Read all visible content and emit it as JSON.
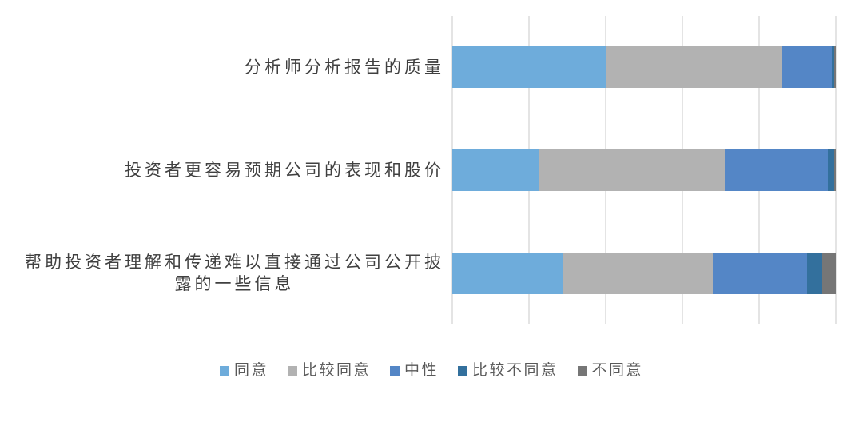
{
  "chart_data": {
    "type": "bar",
    "orientation": "horizontal",
    "stacked": true,
    "stack_unit": "percent",
    "title": "",
    "xlabel": "",
    "ylabel": "",
    "xlim": [
      0,
      100
    ],
    "gridlines_pct": [
      0,
      20,
      40,
      60,
      80,
      100
    ],
    "grid_on": true,
    "grid_color": "#e4e4e4",
    "legend_position": "bottom",
    "categories": [
      "分析师分析报告的质量",
      "投资者更容易预期公司的表现和股价",
      "帮助投资者理解和传递难以直接通过公司公开披\n露的一些信息"
    ],
    "series": [
      {
        "name": "同意",
        "color": "#6eacdb",
        "values": [
          40.0,
          22.5,
          29.0
        ]
      },
      {
        "name": "比较同意",
        "color": "#b2b2b2",
        "values": [
          46.0,
          48.5,
          39.0
        ]
      },
      {
        "name": "中性",
        "color": "#5486c6",
        "values": [
          13.0,
          27.0,
          24.5
        ]
      },
      {
        "name": "比较不同意",
        "color": "#33709d",
        "values": [
          0.5,
          1.5,
          4.0
        ]
      },
      {
        "name": "不同意",
        "color": "#767676",
        "values": [
          0.5,
          0.5,
          3.5
        ]
      }
    ]
  }
}
